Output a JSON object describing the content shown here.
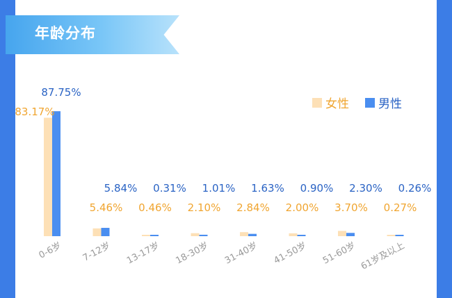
{
  "title": "年龄分布",
  "colors": {
    "female": "#fde0b6",
    "male": "#4a8ef0",
    "female_label": "#f0a530",
    "male_label": "#2a63c4",
    "axis_text": "#999999"
  },
  "chart_data": {
    "type": "bar",
    "categories": [
      "0-6岁",
      "7-12岁",
      "13-17岁",
      "18-30岁",
      "31-40岁",
      "41-50岁",
      "51-60岁",
      "61岁及以上"
    ],
    "series": [
      {
        "name": "女性",
        "values": [
          83.17,
          5.46,
          0.46,
          2.1,
          2.84,
          2.0,
          3.7,
          0.27
        ],
        "labels": [
          "83.17%",
          "5.46%",
          "0.46%",
          "2.10%",
          "2.84%",
          "2.00%",
          "3.70%",
          "0.27%"
        ]
      },
      {
        "name": "男性",
        "values": [
          87.75,
          5.84,
          0.31,
          1.01,
          1.63,
          0.9,
          2.3,
          0.26
        ],
        "labels": [
          "87.75%",
          "5.84%",
          "0.31%",
          "1.01%",
          "1.63%",
          "0.90%",
          "2.30%",
          "0.26%"
        ]
      }
    ],
    "ylim": [
      0,
      100
    ],
    "legend": "top-right",
    "grid": false
  }
}
